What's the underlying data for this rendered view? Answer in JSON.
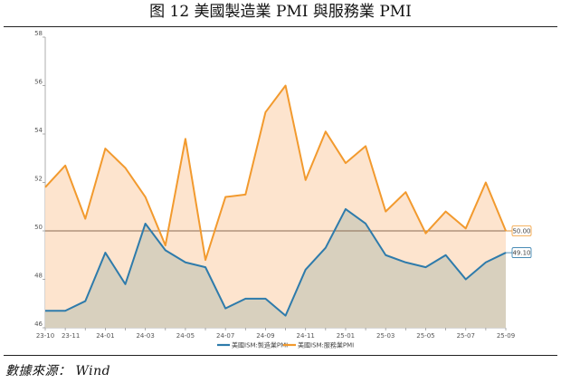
{
  "header": {
    "title": "图 12 美國製造業 PMI 與服務業 PMI"
  },
  "footer": {
    "source": "數據來源： Wind"
  },
  "chart_data": {
    "type": "area",
    "y_range": [
      46,
      58
    ],
    "y_ticks": [
      46,
      48,
      50,
      52,
      54,
      56,
      58
    ],
    "x_tick_labels": [
      "23-10",
      "23-11",
      "24-01",
      "24-03",
      "24-05",
      "24-07",
      "24-09",
      "24-11",
      "25-01",
      "25-03",
      "25-05",
      "25-07",
      "25-09"
    ],
    "reference_line": 50,
    "series": [
      {
        "name": "美國ISM:製造業PMI",
        "color": "#2e7bab",
        "fill": "#d6cfbd",
        "end_label": "49.10",
        "values": [
          46.7,
          46.7,
          47.1,
          49.1,
          47.8,
          50.3,
          49.2,
          48.7,
          48.5,
          46.8,
          47.2,
          47.2,
          46.5,
          48.4,
          49.3,
          50.9,
          50.3,
          49.0,
          48.7,
          48.5,
          49.0,
          48.0,
          48.7,
          49.1
        ]
      },
      {
        "name": "美國ISM:服務業PMI",
        "color": "#f29a2e",
        "fill": "#fde3cb",
        "end_label": "50.00",
        "values": [
          51.8,
          52.7,
          50.5,
          53.4,
          52.6,
          51.4,
          49.4,
          53.8,
          48.8,
          51.4,
          51.5,
          54.9,
          56.0,
          52.1,
          54.1,
          52.8,
          53.5,
          50.8,
          51.6,
          49.9,
          50.8,
          50.1,
          52.0,
          50.0
        ]
      }
    ]
  }
}
